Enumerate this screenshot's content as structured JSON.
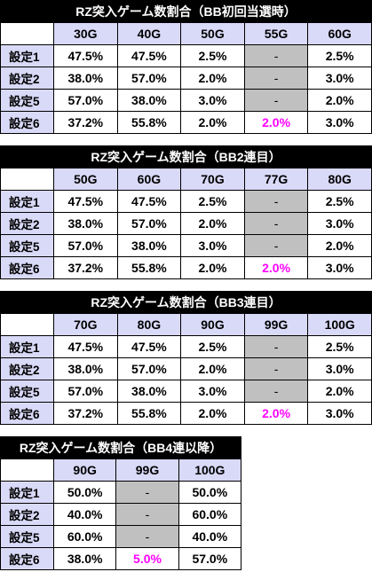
{
  "tables": [
    {
      "title": "RZ突入ゲーム数割合（BB初回当選時）",
      "columns": [
        "30G",
        "40G",
        "50G",
        "55G",
        "60G"
      ],
      "rows": [
        {
          "label": "設定1",
          "values": [
            "47.5%",
            "47.5%",
            "2.5%",
            "-",
            "2.5%"
          ]
        },
        {
          "label": "設定2",
          "values": [
            "38.0%",
            "57.0%",
            "2.0%",
            "-",
            "3.0%"
          ]
        },
        {
          "label": "設定5",
          "values": [
            "57.0%",
            "38.0%",
            "3.0%",
            "-",
            "2.0%"
          ]
        },
        {
          "label": "設定6",
          "values": [
            "37.2%",
            "55.8%",
            "2.0%",
            "2.0%",
            "3.0%"
          ]
        }
      ]
    },
    {
      "title": "RZ突入ゲーム数割合（BB2連目）",
      "columns": [
        "50G",
        "60G",
        "70G",
        "77G",
        "80G"
      ],
      "rows": [
        {
          "label": "設定1",
          "values": [
            "47.5%",
            "47.5%",
            "2.5%",
            "-",
            "2.5%"
          ]
        },
        {
          "label": "設定2",
          "values": [
            "38.0%",
            "57.0%",
            "2.0%",
            "-",
            "3.0%"
          ]
        },
        {
          "label": "設定5",
          "values": [
            "57.0%",
            "38.0%",
            "3.0%",
            "-",
            "2.0%"
          ]
        },
        {
          "label": "設定6",
          "values": [
            "37.2%",
            "55.8%",
            "2.0%",
            "2.0%",
            "3.0%"
          ]
        }
      ]
    },
    {
      "title": "RZ突入ゲーム数割合（BB3連目）",
      "columns": [
        "70G",
        "80G",
        "90G",
        "99G",
        "100G"
      ],
      "rows": [
        {
          "label": "設定1",
          "values": [
            "47.5%",
            "47.5%",
            "2.5%",
            "-",
            "2.5%"
          ]
        },
        {
          "label": "設定2",
          "values": [
            "38.0%",
            "57.0%",
            "2.0%",
            "-",
            "3.0%"
          ]
        },
        {
          "label": "設定5",
          "values": [
            "57.0%",
            "38.0%",
            "3.0%",
            "-",
            "2.0%"
          ]
        },
        {
          "label": "設定6",
          "values": [
            "37.2%",
            "55.8%",
            "2.0%",
            "2.0%",
            "3.0%"
          ]
        }
      ]
    },
    {
      "title": "RZ突入ゲーム数割合（BB4連以降）",
      "columns": [
        "90G",
        "99G",
        "100G"
      ],
      "rows": [
        {
          "label": "設定1",
          "values": [
            "50.0%",
            "-",
            "50.0%"
          ]
        },
        {
          "label": "設定2",
          "values": [
            "40.0%",
            "-",
            "60.0%"
          ]
        },
        {
          "label": "設定5",
          "values": [
            "60.0%",
            "-",
            "40.0%"
          ]
        },
        {
          "label": "設定6",
          "values": [
            "38.0%",
            "5.0%",
            "57.0%"
          ]
        }
      ]
    }
  ],
  "colors": {
    "title_bg": "#000000",
    "header_bg": "#d9d9f8",
    "dash_cell_bg": "#c0c0c0",
    "highlight_text": "#ff00ff"
  }
}
